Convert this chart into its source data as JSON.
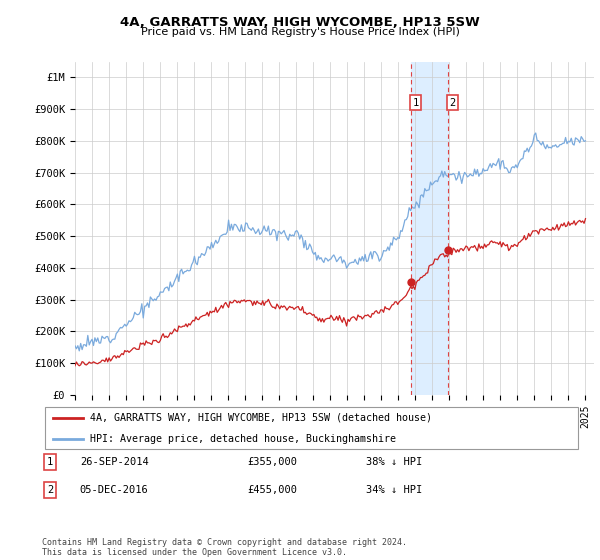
{
  "title": "4A, GARRATTS WAY, HIGH WYCOMBE, HP13 5SW",
  "subtitle": "Price paid vs. HM Land Registry's House Price Index (HPI)",
  "ylabel_ticks": [
    "£0",
    "£100K",
    "£200K",
    "£300K",
    "£400K",
    "£500K",
    "£600K",
    "£700K",
    "£800K",
    "£900K",
    "£1M"
  ],
  "ytick_values": [
    0,
    100000,
    200000,
    300000,
    400000,
    500000,
    600000,
    700000,
    800000,
    900000,
    1000000
  ],
  "ylim": [
    0,
    1050000
  ],
  "xlim_left": 1995,
  "xlim_right": 2025.5,
  "hpi_color": "#7aaadd",
  "price_color": "#cc2222",
  "legend_label_red": "4A, GARRATTS WAY, HIGH WYCOMBE, HP13 5SW (detached house)",
  "legend_label_blue": "HPI: Average price, detached house, Buckinghamshire",
  "transaction1_date": "26-SEP-2014",
  "transaction1_price": "£355,000",
  "transaction1_note": "38% ↓ HPI",
  "transaction2_date": "05-DEC-2016",
  "transaction2_price": "£455,000",
  "transaction2_note": "34% ↓ HPI",
  "footer": "Contains HM Land Registry data © Crown copyright and database right 2024.\nThis data is licensed under the Open Government Licence v3.0.",
  "shade_color": "#ddeeff",
  "vline_color": "#dd4444",
  "grid_color": "#cccccc",
  "t1_x": 2014.75,
  "t1_y": 355000,
  "t2_x": 2016.917,
  "t2_y": 455000
}
